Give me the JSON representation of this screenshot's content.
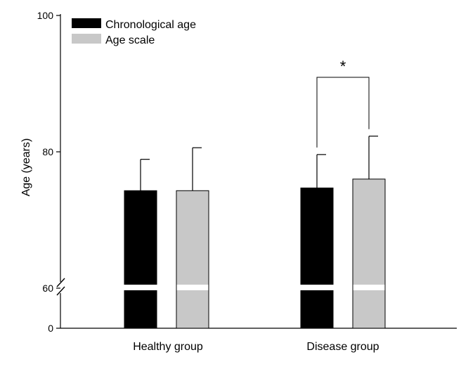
{
  "chart_data": {
    "type": "bar",
    "categories": [
      "Healthy group",
      "Disease group"
    ],
    "series": [
      {
        "name": "Chronological age",
        "color": "#000000",
        "values": [
          74.3,
          74.7
        ],
        "error": [
          4.6,
          4.9
        ]
      },
      {
        "name": "Age scale",
        "color": "#c8c8c8",
        "values": [
          74.3,
          76.0
        ],
        "error": [
          6.3,
          6.3
        ]
      }
    ],
    "ylabel": "Age (years)",
    "xlabel": "",
    "yticks": [
      {
        "value": 0,
        "label": "0"
      },
      {
        "value": 60,
        "label": "60"
      },
      {
        "value": 80,
        "label": "80"
      },
      {
        "value": 100,
        "label": "100"
      }
    ],
    "ylim": [
      0,
      100
    ],
    "axis_break": [
      0,
      60
    ],
    "significance": [
      {
        "category": "Disease group",
        "label": "*"
      }
    ],
    "legend_position": "top-left",
    "grid": false
  }
}
